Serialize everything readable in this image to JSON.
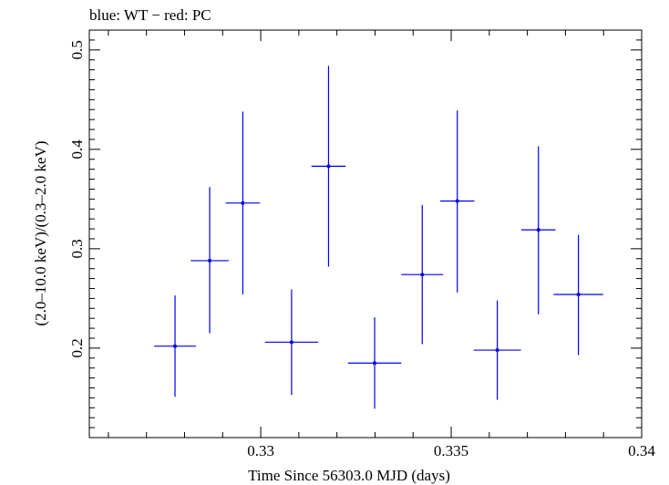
{
  "chart_data": {
    "type": "scatter",
    "title": "blue: WT − red: PC",
    "xlabel": "Time Since 56303.0 MJD (days)",
    "ylabel": "(2.0–10.0 keV)/(0.3–2.0 keV)",
    "xlim": [
      0.3255,
      0.34
    ],
    "ylim": [
      0.11,
      0.52
    ],
    "x_ticks": [
      {
        "value": 0.33,
        "label": "0.33"
      },
      {
        "value": 0.335,
        "label": "0.335"
      },
      {
        "value": 0.34,
        "label": "0.34"
      }
    ],
    "y_ticks": [
      {
        "value": 0.2,
        "label": "0.2"
      },
      {
        "value": 0.3,
        "label": "0.3"
      },
      {
        "value": 0.4,
        "label": "0.4"
      },
      {
        "value": 0.5,
        "label": "0.5"
      }
    ],
    "grid": false,
    "series": [
      {
        "name": "WT",
        "color": "#0000ee",
        "points": [
          {
            "x": 0.32775,
            "xerr": 0.00055,
            "y": 0.202,
            "ylo": 0.151,
            "yhi": 0.253
          },
          {
            "x": 0.32866,
            "xerr": 0.0005,
            "y": 0.288,
            "ylo": 0.215,
            "yhi": 0.362
          },
          {
            "x": 0.32953,
            "xerr": 0.00045,
            "y": 0.346,
            "ylo": 0.254,
            "yhi": 0.438
          },
          {
            "x": 0.33081,
            "xerr": 0.0007,
            "y": 0.206,
            "ylo": 0.153,
            "yhi": 0.259
          },
          {
            "x": 0.33178,
            "xerr": 0.00045,
            "y": 0.383,
            "ylo": 0.282,
            "yhi": 0.484
          },
          {
            "x": 0.33299,
            "xerr": 0.0007,
            "y": 0.185,
            "ylo": 0.139,
            "yhi": 0.231
          },
          {
            "x": 0.33424,
            "xerr": 0.00055,
            "y": 0.274,
            "ylo": 0.204,
            "yhi": 0.344
          },
          {
            "x": 0.33516,
            "xerr": 0.00045,
            "y": 0.348,
            "ylo": 0.256,
            "yhi": 0.439
          },
          {
            "x": 0.33621,
            "xerr": 0.00062,
            "y": 0.198,
            "ylo": 0.148,
            "yhi": 0.248
          },
          {
            "x": 0.33729,
            "xerr": 0.00045,
            "y": 0.319,
            "ylo": 0.234,
            "yhi": 0.403
          },
          {
            "x": 0.33834,
            "xerr": 0.00065,
            "y": 0.254,
            "ylo": 0.193,
            "yhi": 0.314
          }
        ]
      }
    ]
  }
}
